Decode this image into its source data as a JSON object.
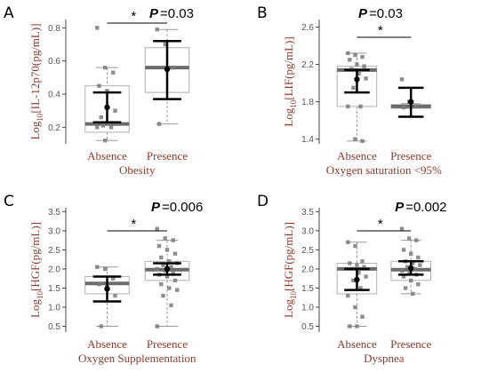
{
  "chart_data": [
    {
      "panel": "A",
      "type": "box",
      "ylabel_main": "Log",
      "ylabel_sub": "10",
      "ylabel_rest": "[IL-12p70(pg/mL)]",
      "xlabel": "Obesity",
      "categories": [
        "Absence",
        "Presence"
      ],
      "yticks": [
        "0.2",
        "0.4",
        "0.6",
        "0.8"
      ],
      "ylim": [
        0.1,
        0.85
      ],
      "boxes": [
        {
          "q1": 0.17,
          "median": 0.22,
          "q3": 0.45,
          "whisker_low": 0.12,
          "whisker_high": 0.56,
          "mean": 0.32,
          "ci_low": 0.23,
          "ci_high": 0.41,
          "points": [
            0.8,
            0.56,
            0.53,
            0.45,
            0.42,
            0.3,
            0.26,
            0.22,
            0.22,
            0.21,
            0.2,
            0.2,
            0.12
          ]
        },
        {
          "q1": 0.41,
          "median": 0.56,
          "q3": 0.68,
          "whisker_low": 0.22,
          "whisker_high": 0.79,
          "mean": 0.55,
          "ci_low": 0.37,
          "ci_high": 0.72,
          "points": [
            0.79,
            0.7,
            0.56,
            0.22
          ]
        }
      ],
      "significance": "*",
      "p_label": "P",
      "p_value": "=0.03"
    },
    {
      "panel": "B",
      "type": "box",
      "ylabel_main": "Log",
      "ylabel_sub": "10",
      "ylabel_rest": "[LIF(pg/mL)]",
      "xlabel": "Oxygen saturation <95%",
      "categories": [
        "Absence",
        "Presence"
      ],
      "yticks": [
        "1.4",
        "1.8",
        "2.2",
        "2.6"
      ],
      "ylim": [
        1.35,
        2.68
      ],
      "boxes": [
        {
          "q1": 1.75,
          "median": 2.14,
          "q3": 2.18,
          "whisker_low": 1.38,
          "whisker_high": 2.32,
          "mean": 2.04,
          "ci_low": 1.9,
          "ci_high": 2.14,
          "points": [
            2.32,
            2.3,
            2.28,
            2.25,
            2.2,
            2.18,
            2.15,
            2.1,
            2.05,
            1.95,
            1.75,
            1.75,
            1.4,
            1.38
          ]
        },
        {
          "q1": 1.73,
          "median": 1.75,
          "q3": 1.77,
          "whisker_low": 1.73,
          "whisker_high": 1.78,
          "mean": 1.8,
          "ci_low": 1.64,
          "ci_high": 1.95,
          "points": [
            2.04,
            1.8,
            1.75,
            1.74
          ]
        }
      ],
      "significance": "*",
      "p_label": "P",
      "p_value": "=0.03"
    },
    {
      "panel": "C",
      "type": "box",
      "ylabel_main": "Log",
      "ylabel_sub": "10",
      "ylabel_rest": "[HGF(pg/mL)]",
      "xlabel": "Oxygen Supplementation",
      "categories": [
        "Absence",
        "Presence"
      ],
      "yticks": [
        "0.5",
        "1.0",
        "1.5",
        "2.0",
        "2.5",
        "3.0",
        "3.5"
      ],
      "ylim": [
        0.35,
        3.6
      ],
      "boxes": [
        {
          "q1": 1.35,
          "median": 1.62,
          "q3": 1.8,
          "whisker_low": 0.5,
          "whisker_high": 2.05,
          "mean": 1.48,
          "ci_low": 1.15,
          "ci_high": 1.8,
          "points": [
            2.05,
            2.0,
            1.75,
            1.6,
            1.55,
            1.3,
            0.5
          ]
        },
        {
          "q1": 1.7,
          "median": 1.98,
          "q3": 2.2,
          "whisker_low": 0.5,
          "whisker_high": 2.75,
          "mean": 2.0,
          "ci_low": 1.85,
          "ci_high": 2.15,
          "points": [
            3.05,
            2.8,
            2.75,
            2.6,
            2.5,
            2.4,
            2.3,
            2.2,
            2.15,
            2.1,
            2.05,
            2.0,
            1.95,
            1.9,
            1.85,
            1.8,
            1.7,
            1.6,
            1.5,
            1.45,
            1.3,
            1.05,
            0.5
          ]
        }
      ],
      "significance": "*",
      "p_label": "P",
      "p_value": "=0.006"
    },
    {
      "panel": "D",
      "type": "box",
      "ylabel_main": "Log",
      "ylabel_sub": "10",
      "ylabel_rest": "[HGF(pg/mL)]",
      "xlabel": "Dyspnea",
      "categories": [
        "Absence",
        "Presence"
      ],
      "yticks": [
        "0.5",
        "1.0",
        "1.5",
        "2.0",
        "2.5",
        "3.0",
        "3.5"
      ],
      "ylim": [
        0.35,
        3.6
      ],
      "boxes": [
        {
          "q1": 1.35,
          "median": 2.0,
          "q3": 2.15,
          "whisker_low": 0.5,
          "whisker_high": 2.7,
          "mean": 1.72,
          "ci_low": 1.45,
          "ci_high": 2.0,
          "points": [
            2.7,
            2.6,
            2.2,
            2.15,
            2.1,
            2.05,
            2.0,
            1.9,
            1.8,
            1.7,
            1.5,
            1.3,
            1.0,
            0.75,
            0.5,
            0.5
          ]
        },
        {
          "q1": 1.7,
          "median": 1.98,
          "q3": 2.2,
          "whisker_low": 1.35,
          "whisker_high": 2.75,
          "mean": 2.02,
          "ci_low": 1.85,
          "ci_high": 2.2,
          "points": [
            3.05,
            2.8,
            2.75,
            2.5,
            2.4,
            2.3,
            2.2,
            2.15,
            2.1,
            2.05,
            2.0,
            1.95,
            1.9,
            1.85,
            1.8,
            1.7,
            1.6,
            1.5,
            1.35
          ]
        }
      ],
      "significance": "*",
      "p_label": "P",
      "p_value": "=0.002"
    }
  ],
  "colors": {
    "label_text": "#8b3a2f",
    "median_line": "#6b6b6b",
    "box_border": "#b0b0b0",
    "points": "#7a7a7a",
    "mean_ci": "#000000"
  }
}
